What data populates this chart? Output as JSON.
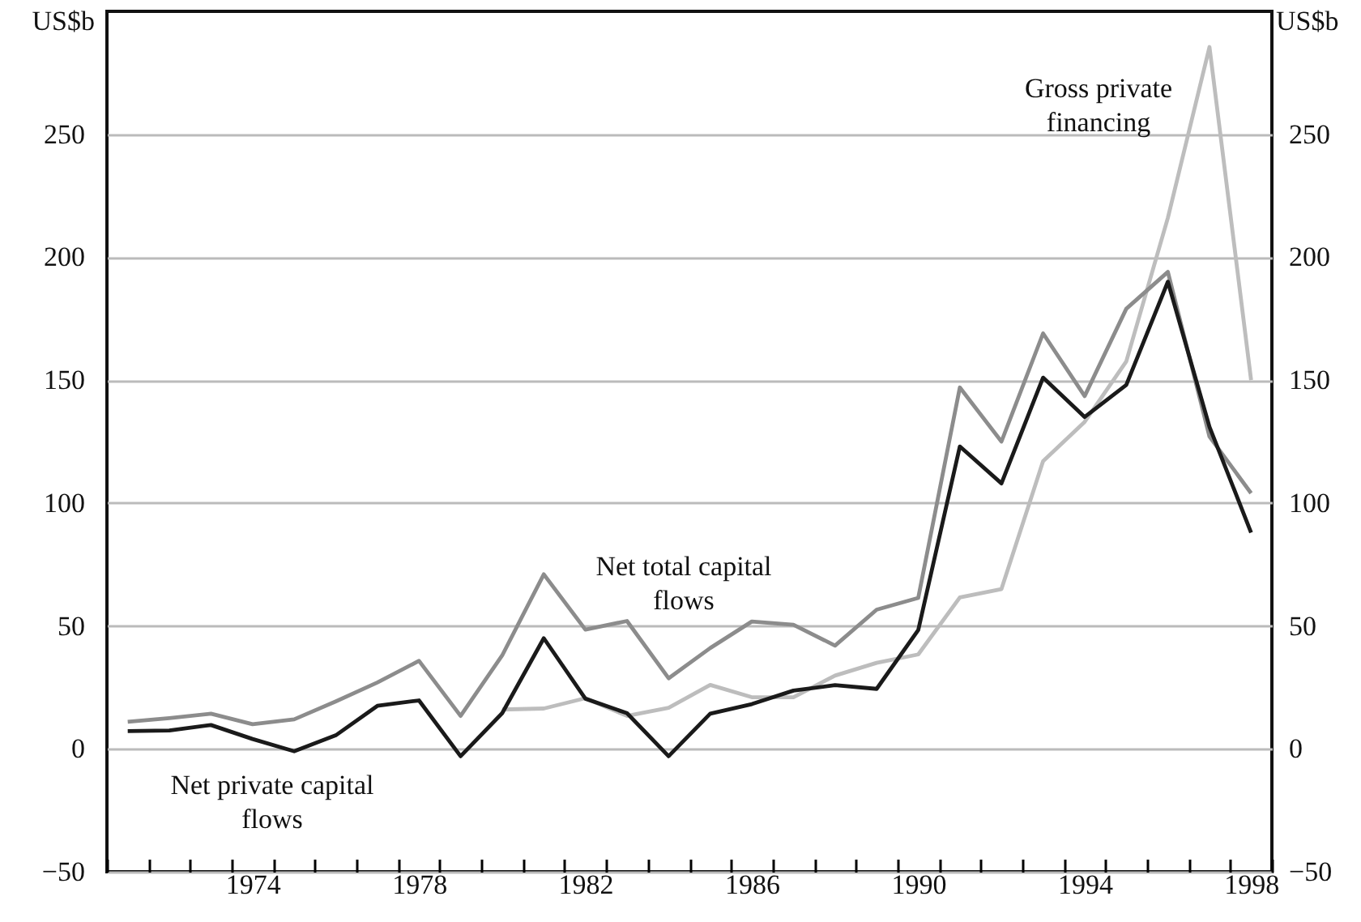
{
  "chart_data": {
    "type": "line",
    "ylabel": "US$b",
    "y2label": "US$b",
    "categories": [
      null,
      null,
      null,
      "1974",
      null,
      null,
      null,
      "1978",
      null,
      null,
      null,
      "1982",
      null,
      null,
      null,
      "1986",
      null,
      null,
      null,
      "1990",
      null,
      null,
      null,
      "1994",
      null,
      null,
      null,
      "1998"
    ],
    "series": [
      {
        "name": "Gross private financing",
        "color": "#bdbdbd",
        "values": [
          null,
          null,
          null,
          null,
          null,
          null,
          null,
          null,
          null,
          16,
          16.4,
          20.6,
          13.4,
          16.7,
          26,
          21,
          21,
          29.8,
          35,
          38.4,
          61.6,
          65,
          117,
          133,
          157.6,
          216,
          285.5,
          150
        ]
      },
      {
        "name": "Net total capital flows",
        "color": "#8c8c8c",
        "values": [
          11,
          12.5,
          14.3,
          10,
          12,
          19.3,
          27,
          35.8,
          13.4,
          38,
          71,
          48.5,
          52,
          28.7,
          41,
          51.8,
          50.5,
          42,
          56.6,
          61.4,
          147,
          125,
          169,
          143.5,
          179,
          194,
          127,
          104
        ]
      },
      {
        "name": "Net private capital flows",
        "color": "#1a1a1a",
        "values": [
          7.2,
          7.5,
          9.7,
          4,
          -1,
          5.5,
          17.5,
          19.7,
          -3,
          14.5,
          45,
          20.4,
          14.5,
          -3,
          14.3,
          18.2,
          23.7,
          25.9,
          24.4,
          48.3,
          123,
          108,
          151,
          135,
          148,
          190,
          131,
          88
        ]
      }
    ],
    "ylim": [
      -50,
      300
    ],
    "yticks": [
      -50,
      0,
      50,
      100,
      150,
      200,
      250
    ],
    "y2lim": [
      -50,
      300
    ],
    "y2ticks": [
      -50,
      0,
      50,
      100,
      150,
      200,
      250
    ],
    "grid": "y",
    "line_style": "solid",
    "marker": "none"
  }
}
